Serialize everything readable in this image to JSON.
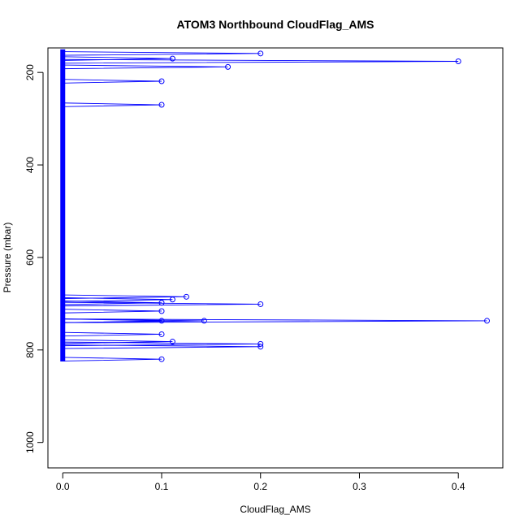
{
  "chart_data": {
    "type": "line",
    "title": "ATOM3 Northbound CloudFlag_AMS",
    "xlabel": "CloudFlag_AMS",
    "ylabel": "Pressure (mbar)",
    "xlim": [
      -0.015,
      0.445
    ],
    "ylim": [
      1055,
      147
    ],
    "y_reversed": true,
    "grid": false,
    "x_ticks": [
      0.0,
      0.1,
      0.2,
      0.3,
      0.4
    ],
    "x_tick_labels": [
      "0.0",
      "0.1",
      "0.2",
      "0.3",
      "0.4"
    ],
    "y_ticks": [
      200,
      400,
      600,
      800,
      1000
    ],
    "y_tick_labels": [
      "200",
      "400",
      "600",
      "800",
      "1000"
    ],
    "series_color": "#0000ff",
    "profile_top": 150,
    "profile_bottom": 825,
    "points": [
      {
        "x": 0.2,
        "y": 159
      },
      {
        "x": 0.111,
        "y": 170
      },
      {
        "x": 0.4,
        "y": 176
      },
      {
        "x": 0.167,
        "y": 188
      },
      {
        "x": 0.1,
        "y": 219
      },
      {
        "x": 0.1,
        "y": 270
      },
      {
        "x": 0.125,
        "y": 685
      },
      {
        "x": 0.111,
        "y": 691
      },
      {
        "x": 0.1,
        "y": 698
      },
      {
        "x": 0.2,
        "y": 701
      },
      {
        "x": 0.1,
        "y": 716
      },
      {
        "x": 0.1,
        "y": 737
      },
      {
        "x": 0.143,
        "y": 737
      },
      {
        "x": 0.429,
        "y": 737
      },
      {
        "x": 0.1,
        "y": 766
      },
      {
        "x": 0.111,
        "y": 782
      },
      {
        "x": 0.2,
        "y": 787
      },
      {
        "x": 0.2,
        "y": 793
      },
      {
        "x": 0.1,
        "y": 820
      }
    ]
  }
}
